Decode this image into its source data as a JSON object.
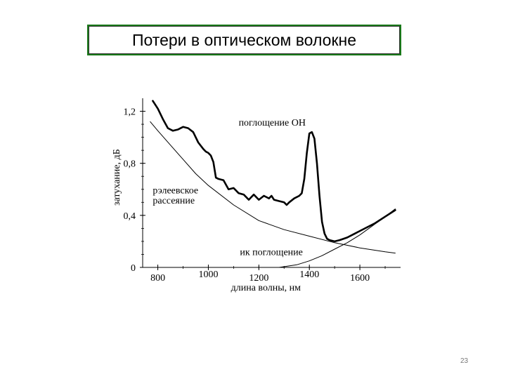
{
  "slide": {
    "title": "Потери в оптическом волокне",
    "page_number": "23"
  },
  "chart_data": {
    "type": "line",
    "title": "",
    "xlabel": "длина волны, нм",
    "ylabel": "затухание, дБ",
    "xlim": [
      740,
      1750
    ],
    "ylim": [
      0,
      1.3
    ],
    "x_ticks": [
      {
        "label": "800",
        "value": 800
      },
      {
        "label": "1000",
        "value": 1000
      },
      {
        "label": "1200",
        "value": 1200
      },
      {
        "label": "1400",
        "value": 1400
      },
      {
        "label": "1600",
        "value": 1600
      }
    ],
    "y_ticks": [
      {
        "label": "0",
        "value": 0
      },
      {
        "label": "0,4",
        "value": 0.4
      },
      {
        "label": "0,8",
        "value": 0.8
      },
      {
        "label": "1,2",
        "value": 1.2
      }
    ],
    "annotations": [
      {
        "text": "поглощение ОН",
        "x": 1120,
        "y": 1.09
      },
      {
        "text": "рэлеевское",
        "x": 780,
        "y": 0.57
      },
      {
        "text": "рассеяние",
        "x": 780,
        "y": 0.49
      },
      {
        "text": "ик поглощение",
        "x": 1125,
        "y": 0.095
      }
    ],
    "series": [
      {
        "key": "total",
        "x": [
          780,
          800,
          820,
          840,
          860,
          880,
          900,
          920,
          940,
          960,
          980,
          990,
          1000,
          1010,
          1020,
          1030,
          1040,
          1060,
          1080,
          1100,
          1120,
          1140,
          1160,
          1180,
          1200,
          1220,
          1240,
          1250,
          1260,
          1280,
          1300,
          1310,
          1320,
          1340,
          1360,
          1370,
          1380,
          1390,
          1400,
          1410,
          1420,
          1430,
          1440,
          1450,
          1460,
          1470,
          1480,
          1500,
          1520,
          1550,
          1580,
          1620,
          1660,
          1700,
          1740
        ],
        "y": [
          1.28,
          1.22,
          1.14,
          1.07,
          1.05,
          1.06,
          1.08,
          1.07,
          1.04,
          0.96,
          0.91,
          0.89,
          0.88,
          0.86,
          0.81,
          0.69,
          0.68,
          0.67,
          0.6,
          0.61,
          0.57,
          0.56,
          0.52,
          0.56,
          0.52,
          0.55,
          0.53,
          0.55,
          0.52,
          0.51,
          0.5,
          0.48,
          0.5,
          0.53,
          0.55,
          0.57,
          0.68,
          0.88,
          1.03,
          1.04,
          0.99,
          0.8,
          0.55,
          0.35,
          0.26,
          0.22,
          0.21,
          0.2,
          0.21,
          0.23,
          0.26,
          0.3,
          0.34,
          0.39,
          0.44
        ]
      },
      {
        "key": "rayleigh",
        "x": [
          770,
          800,
          850,
          900,
          950,
          1000,
          1100,
          1200,
          1300,
          1400,
          1500,
          1600,
          1700,
          1740
        ],
        "y": [
          1.12,
          1.05,
          0.94,
          0.83,
          0.72,
          0.63,
          0.48,
          0.36,
          0.29,
          0.24,
          0.19,
          0.15,
          0.12,
          0.11
        ]
      },
      {
        "key": "ir",
        "x": [
          1280,
          1350,
          1400,
          1450,
          1500,
          1550,
          1600,
          1650,
          1700,
          1740
        ],
        "y": [
          0.0,
          0.02,
          0.05,
          0.09,
          0.14,
          0.19,
          0.25,
          0.32,
          0.39,
          0.45
        ]
      }
    ],
    "grid": false,
    "legend": "none",
    "colors": {
      "lines": "#000000",
      "title_border": "#1a7a1a"
    }
  }
}
